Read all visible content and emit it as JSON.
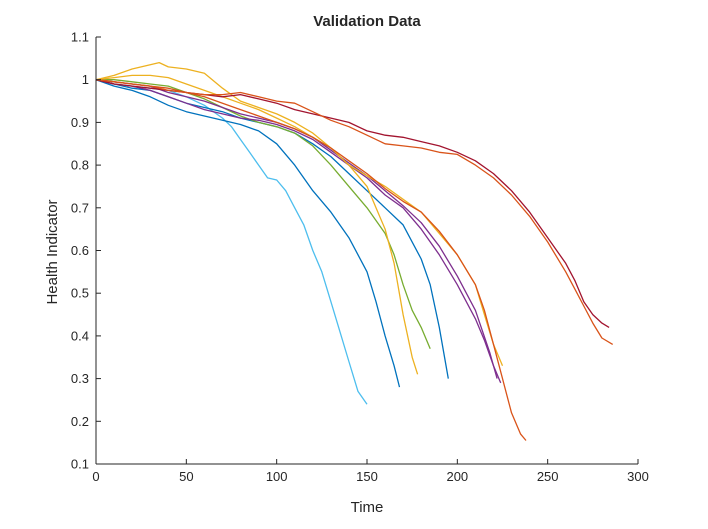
{
  "chart_data": {
    "type": "line",
    "title": "Validation Data",
    "xlabel": "Time",
    "ylabel": "Health Indicator",
    "xlim": [
      0,
      300
    ],
    "ylim": [
      0.1,
      1.1
    ],
    "xticks": [
      0,
      50,
      100,
      150,
      200,
      250,
      300
    ],
    "xtick_labels": [
      "0",
      "50",
      "100",
      "150",
      "200",
      "250",
      "300"
    ],
    "yticks": [
      0.1,
      0.2,
      0.3,
      0.4,
      0.5,
      0.6,
      0.7,
      0.8,
      0.9,
      1.0,
      1.1
    ],
    "ytick_labels": [
      "0.1",
      "0.2",
      "0.3",
      "0.4",
      "0.5",
      "0.6",
      "0.7",
      "0.8",
      "0.9",
      "1",
      "1.1"
    ],
    "grid": false,
    "legend": "none",
    "series": [
      {
        "color": "#4DBEEE",
        "points": [
          [
            0,
            1.0
          ],
          [
            10,
            0.99
          ],
          [
            20,
            0.985
          ],
          [
            30,
            0.98
          ],
          [
            40,
            0.975
          ],
          [
            50,
            0.96
          ],
          [
            60,
            0.94
          ],
          [
            70,
            0.91
          ],
          [
            75,
            0.89
          ],
          [
            80,
            0.86
          ],
          [
            85,
            0.83
          ],
          [
            90,
            0.8
          ],
          [
            95,
            0.77
          ],
          [
            100,
            0.765
          ],
          [
            105,
            0.74
          ],
          [
            110,
            0.7
          ],
          [
            115,
            0.66
          ],
          [
            120,
            0.6
          ],
          [
            125,
            0.55
          ],
          [
            130,
            0.48
          ],
          [
            135,
            0.41
          ],
          [
            140,
            0.34
          ],
          [
            145,
            0.27
          ],
          [
            150,
            0.24
          ]
        ]
      },
      {
        "color": "#0072BD",
        "points": [
          [
            0,
            1.0
          ],
          [
            10,
            0.985
          ],
          [
            20,
            0.975
          ],
          [
            30,
            0.96
          ],
          [
            40,
            0.94
          ],
          [
            50,
            0.925
          ],
          [
            60,
            0.915
          ],
          [
            70,
            0.905
          ],
          [
            80,
            0.895
          ],
          [
            90,
            0.88
          ],
          [
            100,
            0.85
          ],
          [
            110,
            0.8
          ],
          [
            120,
            0.74
          ],
          [
            130,
            0.69
          ],
          [
            140,
            0.63
          ],
          [
            145,
            0.59
          ],
          [
            150,
            0.55
          ],
          [
            155,
            0.48
          ],
          [
            160,
            0.4
          ],
          [
            165,
            0.33
          ],
          [
            168,
            0.28
          ]
        ]
      },
      {
        "color": "#0072BD",
        "points": [
          [
            0,
            1.0
          ],
          [
            10,
            0.99
          ],
          [
            20,
            0.98
          ],
          [
            30,
            0.975
          ],
          [
            40,
            0.96
          ],
          [
            50,
            0.945
          ],
          [
            60,
            0.935
          ],
          [
            70,
            0.925
          ],
          [
            80,
            0.91
          ],
          [
            90,
            0.9
          ],
          [
            100,
            0.89
          ],
          [
            110,
            0.875
          ],
          [
            120,
            0.85
          ],
          [
            130,
            0.82
          ],
          [
            140,
            0.78
          ],
          [
            150,
            0.74
          ],
          [
            160,
            0.7
          ],
          [
            170,
            0.66
          ],
          [
            180,
            0.58
          ],
          [
            185,
            0.52
          ],
          [
            190,
            0.42
          ],
          [
            195,
            0.3
          ]
        ]
      },
      {
        "color": "#77AC30",
        "points": [
          [
            0,
            1.0
          ],
          [
            10,
            1.0
          ],
          [
            20,
            0.995
          ],
          [
            30,
            0.99
          ],
          [
            40,
            0.985
          ],
          [
            50,
            0.97
          ],
          [
            60,
            0.955
          ],
          [
            70,
            0.935
          ],
          [
            80,
            0.915
          ],
          [
            90,
            0.9
          ],
          [
            100,
            0.89
          ],
          [
            110,
            0.875
          ],
          [
            120,
            0.845
          ],
          [
            130,
            0.8
          ],
          [
            140,
            0.75
          ],
          [
            150,
            0.7
          ],
          [
            160,
            0.64
          ],
          [
            165,
            0.59
          ],
          [
            170,
            0.52
          ],
          [
            175,
            0.46
          ],
          [
            180,
            0.42
          ],
          [
            185,
            0.37
          ]
        ]
      },
      {
        "color": "#EDB120",
        "points": [
          [
            0,
            1.0
          ],
          [
            10,
            1.01
          ],
          [
            20,
            1.025
          ],
          [
            30,
            1.035
          ],
          [
            35,
            1.04
          ],
          [
            40,
            1.03
          ],
          [
            50,
            1.025
          ],
          [
            60,
            1.015
          ],
          [
            70,
            0.98
          ],
          [
            80,
            0.95
          ],
          [
            90,
            0.935
          ],
          [
            100,
            0.92
          ],
          [
            110,
            0.9
          ],
          [
            120,
            0.875
          ],
          [
            130,
            0.84
          ],
          [
            140,
            0.8
          ],
          [
            150,
            0.75
          ],
          [
            155,
            0.7
          ],
          [
            160,
            0.65
          ],
          [
            165,
            0.57
          ],
          [
            170,
            0.45
          ],
          [
            175,
            0.35
          ],
          [
            178,
            0.31
          ]
        ]
      },
      {
        "color": "#7E2F8E",
        "points": [
          [
            0,
            1.0
          ],
          [
            10,
            0.99
          ],
          [
            20,
            0.985
          ],
          [
            30,
            0.975
          ],
          [
            40,
            0.96
          ],
          [
            50,
            0.945
          ],
          [
            60,
            0.93
          ],
          [
            70,
            0.92
          ],
          [
            80,
            0.91
          ],
          [
            90,
            0.905
          ],
          [
            100,
            0.895
          ],
          [
            110,
            0.88
          ],
          [
            120,
            0.86
          ],
          [
            130,
            0.83
          ],
          [
            140,
            0.8
          ],
          [
            150,
            0.77
          ],
          [
            160,
            0.73
          ],
          [
            170,
            0.7
          ],
          [
            180,
            0.65
          ],
          [
            190,
            0.59
          ],
          [
            200,
            0.52
          ],
          [
            210,
            0.44
          ],
          [
            215,
            0.39
          ],
          [
            220,
            0.33
          ],
          [
            224,
            0.29
          ]
        ]
      },
      {
        "color": "#7E2F8E",
        "points": [
          [
            0,
            1.0
          ],
          [
            10,
            0.995
          ],
          [
            20,
            0.99
          ],
          [
            30,
            0.985
          ],
          [
            40,
            0.97
          ],
          [
            50,
            0.96
          ],
          [
            60,
            0.95
          ],
          [
            70,
            0.935
          ],
          [
            80,
            0.92
          ],
          [
            90,
            0.91
          ],
          [
            100,
            0.9
          ],
          [
            110,
            0.885
          ],
          [
            120,
            0.865
          ],
          [
            130,
            0.835
          ],
          [
            140,
            0.805
          ],
          [
            150,
            0.775
          ],
          [
            160,
            0.74
          ],
          [
            170,
            0.705
          ],
          [
            180,
            0.665
          ],
          [
            190,
            0.61
          ],
          [
            200,
            0.54
          ],
          [
            210,
            0.46
          ],
          [
            218,
            0.36
          ],
          [
            222,
            0.3
          ]
        ]
      },
      {
        "color": "#EDB120",
        "points": [
          [
            0,
            1.0
          ],
          [
            10,
            1.005
          ],
          [
            20,
            1.01
          ],
          [
            30,
            1.01
          ],
          [
            40,
            1.005
          ],
          [
            50,
            0.99
          ],
          [
            60,
            0.975
          ],
          [
            70,
            0.96
          ],
          [
            80,
            0.945
          ],
          [
            90,
            0.93
          ],
          [
            100,
            0.91
          ],
          [
            110,
            0.89
          ],
          [
            120,
            0.865
          ],
          [
            130,
            0.84
          ],
          [
            140,
            0.8
          ],
          [
            150,
            0.775
          ],
          [
            160,
            0.75
          ],
          [
            170,
            0.72
          ],
          [
            180,
            0.69
          ],
          [
            190,
            0.64
          ],
          [
            200,
            0.59
          ],
          [
            210,
            0.52
          ],
          [
            215,
            0.45
          ],
          [
            220,
            0.38
          ],
          [
            225,
            0.33
          ]
        ]
      },
      {
        "color": "#D95319",
        "points": [
          [
            0,
            1.0
          ],
          [
            10,
            0.995
          ],
          [
            20,
            0.99
          ],
          [
            30,
            0.985
          ],
          [
            40,
            0.98
          ],
          [
            50,
            0.97
          ],
          [
            60,
            0.96
          ],
          [
            70,
            0.945
          ],
          [
            80,
            0.93
          ],
          [
            90,
            0.915
          ],
          [
            100,
            0.9
          ],
          [
            110,
            0.885
          ],
          [
            120,
            0.865
          ],
          [
            130,
            0.84
          ],
          [
            140,
            0.81
          ],
          [
            150,
            0.78
          ],
          [
            160,
            0.745
          ],
          [
            170,
            0.715
          ],
          [
            180,
            0.69
          ],
          [
            190,
            0.645
          ],
          [
            200,
            0.59
          ],
          [
            210,
            0.52
          ],
          [
            215,
            0.46
          ],
          [
            220,
            0.38
          ],
          [
            225,
            0.3
          ],
          [
            230,
            0.22
          ],
          [
            235,
            0.17
          ],
          [
            238,
            0.155
          ]
        ]
      },
      {
        "color": "#A2142F",
        "points": [
          [
            0,
            1.0
          ],
          [
            10,
            0.99
          ],
          [
            20,
            0.985
          ],
          [
            30,
            0.98
          ],
          [
            40,
            0.975
          ],
          [
            50,
            0.97
          ],
          [
            60,
            0.965
          ],
          [
            70,
            0.96
          ],
          [
            80,
            0.965
          ],
          [
            90,
            0.955
          ],
          [
            100,
            0.945
          ],
          [
            110,
            0.93
          ],
          [
            120,
            0.92
          ],
          [
            130,
            0.91
          ],
          [
            140,
            0.9
          ],
          [
            150,
            0.88
          ],
          [
            160,
            0.87
          ],
          [
            170,
            0.865
          ],
          [
            180,
            0.855
          ],
          [
            190,
            0.845
          ],
          [
            200,
            0.83
          ],
          [
            210,
            0.81
          ],
          [
            220,
            0.78
          ],
          [
            230,
            0.74
          ],
          [
            240,
            0.69
          ],
          [
            250,
            0.63
          ],
          [
            260,
            0.57
          ],
          [
            265,
            0.53
          ],
          [
            270,
            0.48
          ],
          [
            275,
            0.45
          ],
          [
            280,
            0.43
          ],
          [
            284,
            0.42
          ]
        ]
      },
      {
        "color": "#D95319",
        "points": [
          [
            0,
            1.0
          ],
          [
            10,
            0.995
          ],
          [
            20,
            0.99
          ],
          [
            30,
            0.985
          ],
          [
            40,
            0.975
          ],
          [
            50,
            0.97
          ],
          [
            60,
            0.965
          ],
          [
            70,
            0.965
          ],
          [
            80,
            0.97
          ],
          [
            90,
            0.96
          ],
          [
            100,
            0.95
          ],
          [
            110,
            0.945
          ],
          [
            120,
            0.925
          ],
          [
            130,
            0.905
          ],
          [
            140,
            0.89
          ],
          [
            150,
            0.87
          ],
          [
            160,
            0.85
          ],
          [
            170,
            0.845
          ],
          [
            180,
            0.84
          ],
          [
            190,
            0.83
          ],
          [
            200,
            0.825
          ],
          [
            210,
            0.8
          ],
          [
            220,
            0.77
          ],
          [
            230,
            0.73
          ],
          [
            240,
            0.68
          ],
          [
            250,
            0.62
          ],
          [
            260,
            0.55
          ],
          [
            265,
            0.51
          ],
          [
            270,
            0.47
          ],
          [
            275,
            0.43
          ],
          [
            280,
            0.395
          ],
          [
            286,
            0.38
          ]
        ]
      }
    ]
  }
}
